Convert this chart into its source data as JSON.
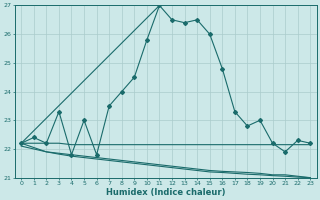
{
  "background_color": "#cce8e8",
  "grid_color": "#aacccc",
  "line_color": "#1a6b6b",
  "xlabel": "Humidex (Indice chaleur)",
  "ylim": [
    21,
    27
  ],
  "xlim": [
    -0.5,
    23.5
  ],
  "yticks": [
    21,
    22,
    23,
    24,
    25,
    26,
    27
  ],
  "xticks": [
    0,
    1,
    2,
    3,
    4,
    5,
    6,
    7,
    8,
    9,
    10,
    11,
    12,
    13,
    14,
    15,
    16,
    17,
    18,
    19,
    20,
    21,
    22,
    23
  ],
  "series_main_x": [
    0,
    1,
    2,
    3,
    4,
    5,
    6,
    7,
    8,
    9,
    10,
    11,
    12,
    13,
    14,
    15,
    16,
    17,
    18,
    19,
    20,
    21,
    22,
    23
  ],
  "series_main_y": [
    22.2,
    22.4,
    22.2,
    23.3,
    21.8,
    23.0,
    21.8,
    23.5,
    24.0,
    24.5,
    25.8,
    27.0,
    26.5,
    26.4,
    26.5,
    26.0,
    24.8,
    23.3,
    22.8,
    23.0,
    22.2,
    21.9,
    22.3,
    22.2
  ],
  "series_flat_x": [
    0,
    1,
    2,
    3,
    4,
    5,
    6,
    7,
    8,
    9,
    10,
    11,
    12,
    13,
    14,
    15,
    16,
    17,
    18,
    19,
    20,
    21,
    22,
    23
  ],
  "series_flat_y": [
    22.2,
    22.2,
    22.2,
    22.2,
    22.15,
    22.15,
    22.15,
    22.15,
    22.15,
    22.15,
    22.15,
    22.15,
    22.15,
    22.15,
    22.15,
    22.15,
    22.15,
    22.15,
    22.15,
    22.15,
    22.15,
    22.15,
    22.15,
    22.15
  ],
  "series_slope1_x": [
    0,
    1,
    2,
    3,
    4,
    5,
    6,
    7,
    8,
    9,
    10,
    11,
    12,
    13,
    14,
    15,
    16,
    17,
    18,
    19,
    20,
    21,
    22,
    23
  ],
  "series_slope1_y": [
    22.1,
    22.0,
    21.9,
    21.85,
    21.8,
    21.75,
    21.7,
    21.65,
    21.6,
    21.55,
    21.5,
    21.45,
    21.4,
    21.35,
    21.3,
    21.25,
    21.22,
    21.2,
    21.18,
    21.15,
    21.1,
    21.1,
    21.05,
    21.0
  ],
  "series_slope2_x": [
    0,
    1,
    2,
    3,
    4,
    5,
    6,
    7,
    8,
    9,
    10,
    11,
    12,
    13,
    14,
    15,
    16,
    17,
    18,
    19,
    20,
    21,
    22,
    23
  ],
  "series_slope2_y": [
    22.2,
    22.05,
    21.9,
    21.82,
    21.75,
    21.7,
    21.65,
    21.6,
    21.55,
    21.5,
    21.45,
    21.4,
    21.35,
    21.3,
    21.25,
    21.2,
    21.18,
    21.15,
    21.12,
    21.1,
    21.07,
    21.05,
    21.02,
    21.0
  ],
  "trend_x": [
    0,
    23
  ],
  "trend_y": [
    22.2,
    22.2
  ]
}
